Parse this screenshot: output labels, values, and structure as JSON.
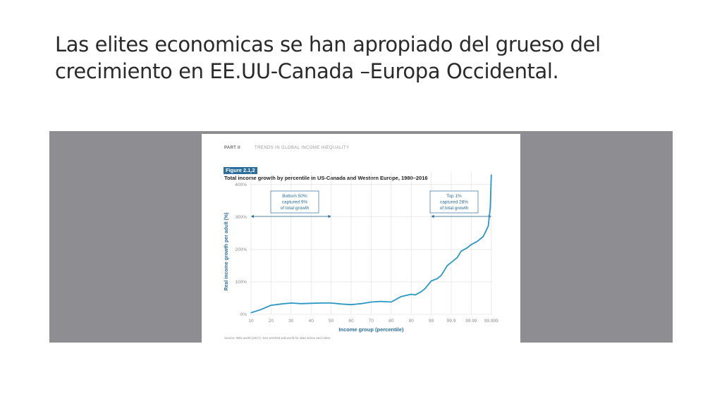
{
  "slide": {
    "title_line1": "Las elites economicas se han apropiado del grueso del",
    "title_line2": "crecimiento en EE.UU-Canada –Europa Occidental."
  },
  "figure": {
    "part_label": "PART II",
    "part_title": "TRENDS IN GLOBAL INCOME INEQUALITY",
    "tag": "Figure 2.1.2",
    "title": "Total income growth by percentile in US-Canada and Western Europe, 1980–2016",
    "source": "Source: WID.world (2017). See wir2018.wid.world for data series and notes."
  },
  "chart_data": {
    "type": "line",
    "xlabel": "Income group (percentile)",
    "ylabel": "Real income growth per adult (%)",
    "x_tick_labels": [
      "10",
      "20",
      "30",
      "40",
      "50",
      "60",
      "70",
      "80",
      "90",
      "99",
      "99.9",
      "99.99",
      "99.999"
    ],
    "y_tick_labels": [
      "0%",
      "100%",
      "200%",
      "300%",
      "400%"
    ],
    "ylim": [
      0,
      430
    ],
    "grid": true,
    "line_color": "#2a97c4",
    "series": [
      {
        "x_index": [
          0,
          0.5,
          1,
          1.5,
          2,
          2.5,
          3,
          3.5,
          4,
          4.5,
          5,
          5.5,
          6,
          6.5,
          7,
          7.5,
          8,
          8.2,
          8.5,
          8.7,
          9,
          9.3,
          9.5,
          9.8,
          10,
          10.3,
          10.5,
          10.8,
          11,
          11.3,
          11.6,
          11.85,
          11.95,
          12
        ],
        "values": [
          5,
          15,
          28,
          32,
          35,
          33,
          34,
          35,
          35,
          32,
          30,
          33,
          38,
          40,
          38,
          55,
          62,
          60,
          70,
          80,
          103,
          110,
          120,
          150,
          160,
          175,
          195,
          205,
          215,
          225,
          240,
          272,
          330,
          430
        ]
      }
    ],
    "annotations": [
      {
        "lines": [
          "Bottom 50%",
          "captured 9%",
          "of total growth"
        ]
      },
      {
        "lines": [
          "Top 1%",
          "captured 28%",
          "of total growth"
        ]
      }
    ]
  }
}
